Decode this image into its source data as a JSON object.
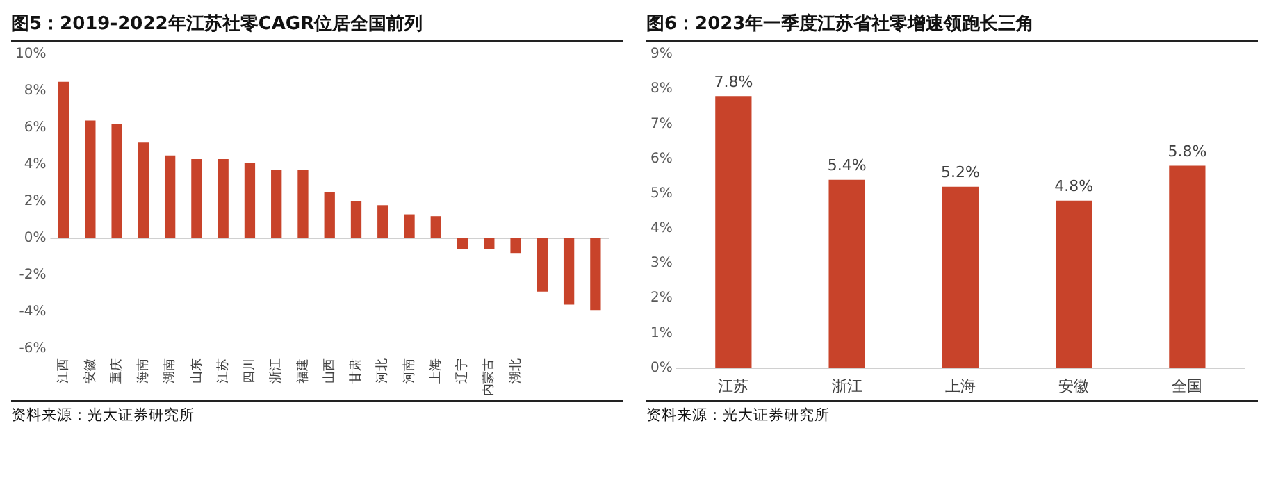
{
  "chart_data": [
    {
      "type": "bar",
      "title": "图5：2019-2022年江苏社零CAGR位居全国前列",
      "categories": [
        "江西",
        "安徽",
        "重庆",
        "海南",
        "湖南",
        "山东",
        "江苏",
        "四川",
        "浙江",
        "福建",
        "山西",
        "甘肃",
        "河北",
        "河南",
        "上海",
        "辽宁",
        "内蒙古",
        "湖北",
        null,
        null,
        null
      ],
      "values": [
        8.5,
        6.4,
        6.2,
        5.2,
        4.5,
        4.3,
        4.3,
        4.1,
        3.7,
        3.7,
        2.5,
        2.0,
        1.8,
        1.3,
        1.2,
        -0.6,
        -0.6,
        -0.8,
        -2.9,
        -3.6,
        -3.9
      ],
      "color": "#c8432a",
      "ylim": [
        -6,
        10
      ],
      "yticks": [
        {
          "value": -6,
          "label": "-6%"
        },
        {
          "value": -4,
          "label": "-4%"
        },
        {
          "value": -2,
          "label": "-2%"
        },
        {
          "value": 0,
          "label": "0%"
        },
        {
          "value": 2,
          "label": "2%"
        },
        {
          "value": 4,
          "label": "4%"
        },
        {
          "value": 6,
          "label": "6%"
        },
        {
          "value": 8,
          "label": "8%"
        },
        {
          "value": 10,
          "label": "10%"
        }
      ],
      "grid": false,
      "ref_lines": [
        {
          "axis": "y",
          "value": 0,
          "color": "#d0d0d0"
        }
      ],
      "annotations": [
        "资料来源：光大证券研究所"
      ]
    },
    {
      "type": "bar",
      "title": "图6：2023年一季度江苏省社零增速领跑长三角",
      "categories": [
        "江苏",
        "浙江",
        "上海",
        "安徽",
        "全国"
      ],
      "values": [
        7.8,
        5.4,
        5.2,
        4.8,
        5.8
      ],
      "color": "#c8432a",
      "value_labels": [
        "7.8%",
        "5.4%",
        "5.2%",
        "4.8%",
        "5.8%"
      ],
      "ylim": [
        0,
        9
      ],
      "yticks": [
        {
          "value": 0,
          "label": "0%"
        },
        {
          "value": 1,
          "label": "1%"
        },
        {
          "value": 2,
          "label": "2%"
        },
        {
          "value": 3,
          "label": "3%"
        },
        {
          "value": 4,
          "label": "4%"
        },
        {
          "value": 5,
          "label": "5%"
        },
        {
          "value": 6,
          "label": "6%"
        },
        {
          "value": 7,
          "label": "7%"
        },
        {
          "value": 8,
          "label": "8%"
        },
        {
          "value": 9,
          "label": "9%"
        }
      ],
      "grid": false,
      "annotations": [
        "资料来源：光大证券研究所"
      ]
    }
  ]
}
